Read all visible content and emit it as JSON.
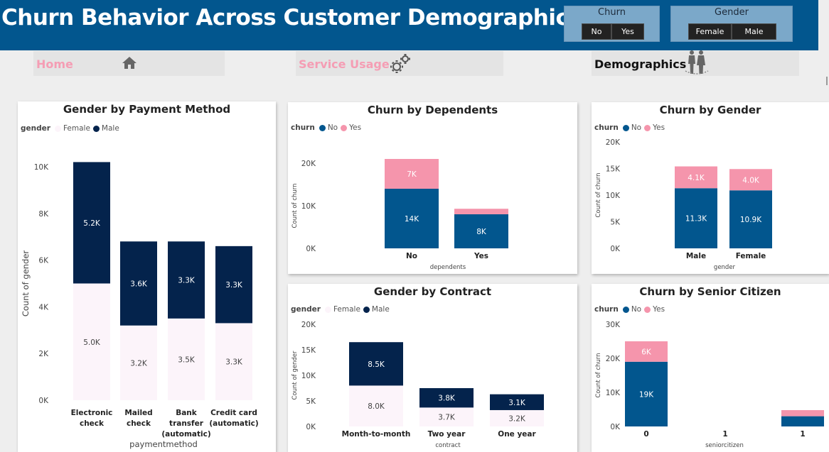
{
  "header": {
    "title": "Churn Behavior Across Customer Demographics"
  },
  "slicers": {
    "churn": {
      "title": "Churn",
      "options": [
        "No",
        "Yes"
      ]
    },
    "gender": {
      "title": "Gender",
      "options": [
        "Female",
        "Male"
      ]
    }
  },
  "nav": {
    "home": {
      "label": "Home",
      "icon": "home-icon"
    },
    "service": {
      "label": "Service Usage",
      "icon": "gear-icon"
    },
    "demographics": {
      "label": "Demographics",
      "icon": "people-icon"
    }
  },
  "colors": {
    "male": "#04234c",
    "female": "#fcf4fa",
    "no": "#02568e",
    "yes": "#f595ac"
  },
  "chart_data": [
    {
      "id": "payment",
      "type": "bar",
      "title": "Gender by Payment Method",
      "legend_title": "gender",
      "legend": [
        "Female",
        "Male"
      ],
      "categories": [
        "Electronic check",
        "Mailed check",
        "Bank transfer (automatic)",
        "Credit card (automatic)"
      ],
      "series": [
        {
          "name": "Female",
          "values": [
            5000,
            3200,
            3500,
            3300
          ],
          "labels": [
            "5.0K",
            "3.2K",
            "3.5K",
            "3.3K"
          ]
        },
        {
          "name": "Male",
          "values": [
            5200,
            3600,
            3300,
            3300
          ],
          "labels": [
            "5.2K",
            "3.6K",
            "3.3K",
            "3.3K"
          ]
        }
      ],
      "xlabel": "paymentmethod",
      "ylabel": "Count of gender",
      "yticks": [
        "0K",
        "2K",
        "4K",
        "6K",
        "8K",
        "10K"
      ],
      "ylim": [
        0,
        10000
      ],
      "legend_position": "top-left"
    },
    {
      "id": "dependents",
      "type": "bar",
      "title": "Churn by Dependents",
      "legend_title": "churn",
      "legend": [
        "No",
        "Yes"
      ],
      "categories": [
        "No",
        "Yes"
      ],
      "series": [
        {
          "name": "No",
          "values": [
            14000,
            8000
          ],
          "labels": [
            "14K",
            "8K"
          ]
        },
        {
          "name": "Yes",
          "values": [
            7000,
            1300
          ],
          "labels": [
            "7K",
            ""
          ]
        }
      ],
      "xlabel": "dependents",
      "ylabel": "Count of churn",
      "yticks": [
        "0K",
        "10K",
        "20K"
      ],
      "ylim": [
        0,
        20000
      ],
      "legend_position": "top-left"
    },
    {
      "id": "gender",
      "type": "bar",
      "title": "Churn by Gender",
      "legend_title": "churn",
      "legend": [
        "No",
        "Yes"
      ],
      "categories": [
        "Male",
        "Female"
      ],
      "series": [
        {
          "name": "No",
          "values": [
            11300,
            10900
          ],
          "labels": [
            "11.3K",
            "10.9K"
          ]
        },
        {
          "name": "Yes",
          "values": [
            4100,
            4000
          ],
          "labels": [
            "4.1K",
            "4.0K"
          ]
        }
      ],
      "xlabel": "gender",
      "ylabel": "Count of churn",
      "yticks": [
        "0K",
        "5K",
        "10K",
        "15K",
        "20K"
      ],
      "ylim": [
        0,
        20000
      ],
      "legend_position": "top-left"
    },
    {
      "id": "contract",
      "type": "bar",
      "title": "Gender by Contract",
      "legend_title": "gender",
      "legend": [
        "Female",
        "Male"
      ],
      "categories": [
        "Month-to-month",
        "Two year",
        "One year"
      ],
      "series": [
        {
          "name": "Female",
          "values": [
            8000,
            3700,
            3200
          ],
          "labels": [
            "8.0K",
            "3.7K",
            "3.2K"
          ]
        },
        {
          "name": "Male",
          "values": [
            8500,
            3800,
            3100
          ],
          "labels": [
            "8.5K",
            "3.8K",
            "3.1K"
          ]
        }
      ],
      "xlabel": "contract",
      "ylabel": "Count of gender",
      "yticks": [
        "0K",
        "5K",
        "10K",
        "15K",
        "20K"
      ],
      "ylim": [
        0,
        20000
      ],
      "legend_position": "top-left"
    },
    {
      "id": "senior",
      "type": "bar",
      "title": "Churn by Senior Citizen",
      "legend_title": "churn",
      "legend": [
        "No",
        "Yes"
      ],
      "categories": [
        "0",
        "1",
        "1"
      ],
      "series": [
        {
          "name": "No",
          "values": [
            19000,
            0,
            3000
          ],
          "labels": [
            "19K",
            "",
            ""
          ]
        },
        {
          "name": "Yes",
          "values": [
            6000,
            0,
            1800
          ],
          "labels": [
            "6K",
            "",
            ""
          ]
        }
      ],
      "xlabel": "seniorcitizen",
      "ylabel": "Count of churn",
      "yticks": [
        "0K",
        "10K",
        "20K",
        "30K"
      ],
      "ylim": [
        0,
        30000
      ],
      "legend_position": "top-left"
    }
  ]
}
